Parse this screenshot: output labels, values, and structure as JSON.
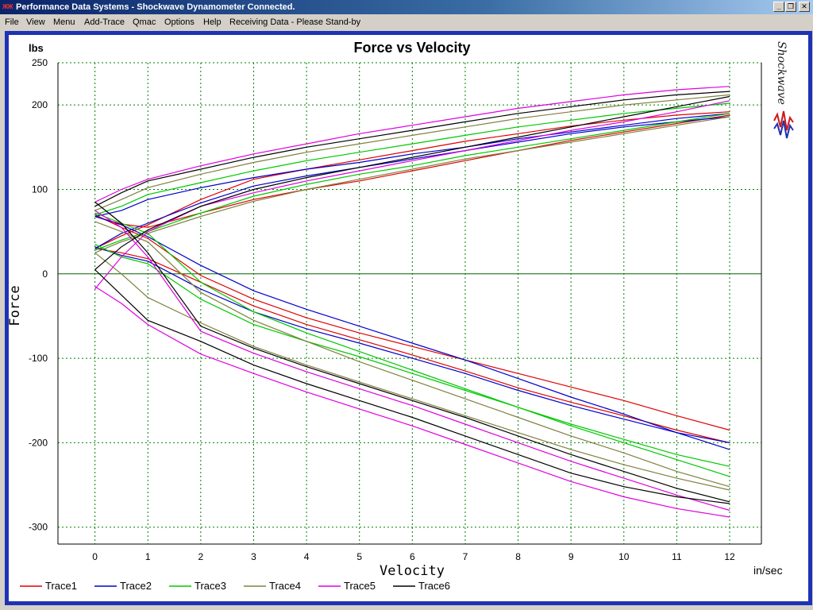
{
  "window": {
    "title": "Performance Data Systems - Shockwave Dynamometer Connected.",
    "icon": "pds-app-icon",
    "controls": [
      "minimize-icon",
      "restore-icon",
      "close-icon"
    ]
  },
  "menu": {
    "items": [
      "File",
      "View",
      "Menu",
      "Add-Trace",
      "Qmac",
      "Options",
      "Help"
    ],
    "status": "Receiving Data - Please Stand-by"
  },
  "logo": {
    "text": "Shockwave"
  },
  "colors": {
    "frame": "#1e32b4",
    "grid": "#008000",
    "zero_line": "#006400",
    "Trace1": "#e00000",
    "Trace2": "#0000cc",
    "Trace3": "#00c800",
    "Trace4": "#808040",
    "Trace5": "#e000e0",
    "Trace6": "#000000"
  },
  "chart_data": {
    "type": "line",
    "title": "Force vs Velocity",
    "xlabel": "Velocity",
    "ylabel": "Force",
    "x_unit": "in/sec",
    "y_unit": "lbs",
    "xlim": [
      -0.7,
      12.6
    ],
    "ylim": [
      -320,
      250
    ],
    "xticks": [
      0,
      1,
      2,
      3,
      4,
      5,
      6,
      7,
      8,
      9,
      10,
      11,
      12
    ],
    "yticks": [
      250,
      200,
      100,
      0,
      -100,
      -200,
      -300
    ],
    "grid": true,
    "legend_position": "bottom",
    "x": [
      0,
      0.5,
      1,
      2,
      3,
      4,
      5,
      6,
      7,
      8,
      9,
      10,
      11,
      12
    ],
    "series": [
      {
        "name": "Trace1",
        "color": "#e00000",
        "compression_a": [
          68,
          59,
          55,
          72,
          88,
          100,
          110,
          122,
          134,
          146,
          158,
          168,
          178,
          188
        ],
        "compression_b": [
          30,
          45,
          58,
          88,
          112,
          124,
          135,
          146,
          157,
          166,
          175,
          182,
          188,
          192
        ],
        "rebound_a": [
          30,
          25,
          18,
          -10,
          -38,
          -60,
          -78,
          -96,
          -115,
          -135,
          -152,
          -168,
          -185,
          -200
        ],
        "rebound_b": [
          70,
          55,
          42,
          -2,
          -30,
          -52,
          -70,
          -86,
          -102,
          -118,
          -134,
          -150,
          -168,
          -185
        ]
      },
      {
        "name": "Trace2",
        "color": "#0000cc",
        "compression_a": [
          68,
          75,
          88,
          102,
          114,
          124,
          132,
          142,
          150,
          160,
          168,
          176,
          184,
          190
        ],
        "compression_b": [
          30,
          48,
          60,
          84,
          104,
          116,
          126,
          136,
          146,
          156,
          166,
          174,
          180,
          186
        ],
        "rebound_a": [
          68,
          58,
          44,
          10,
          -20,
          -42,
          -62,
          -82,
          -102,
          -124,
          -146,
          -166,
          -188,
          -208
        ],
        "rebound_b": [
          32,
          22,
          15,
          -18,
          -45,
          -65,
          -82,
          -100,
          -118,
          -138,
          -156,
          -172,
          -188,
          -200
        ]
      },
      {
        "name": "Trace3",
        "color": "#00c800",
        "compression_a": [
          70,
          80,
          94,
          108,
          122,
          134,
          144,
          154,
          164,
          174,
          182,
          190,
          196,
          202
        ],
        "compression_b": [
          28,
          40,
          50,
          72,
          92,
          106,
          118,
          128,
          140,
          150,
          160,
          170,
          180,
          190
        ],
        "rebound_a": [
          35,
          20,
          12,
          -30,
          -60,
          -80,
          -98,
          -118,
          -138,
          -158,
          -178,
          -196,
          -214,
          -228
        ],
        "rebound_b": [
          72,
          60,
          48,
          -10,
          -45,
          -70,
          -92,
          -114,
          -136,
          -158,
          -180,
          -200,
          -220,
          -240
        ]
      },
      {
        "name": "Trace4",
        "color": "#808040",
        "compression_a": [
          75,
          88,
          102,
          118,
          132,
          144,
          154,
          164,
          174,
          184,
          192,
          200,
          206,
          212
        ],
        "compression_b": [
          25,
          38,
          48,
          68,
          86,
          100,
          112,
          124,
          136,
          146,
          156,
          166,
          176,
          186
        ],
        "rebound_a": [
          25,
          0,
          -28,
          -58,
          -86,
          -108,
          -128,
          -148,
          -168,
          -188,
          -208,
          -226,
          -242,
          -256
        ],
        "rebound_b": [
          62,
          50,
          38,
          -22,
          -55,
          -80,
          -104,
          -126,
          -148,
          -170,
          -192,
          -212,
          -234,
          -252
        ]
      },
      {
        "name": "Trace5",
        "color": "#e000e0",
        "compression_a": [
          85,
          100,
          112,
          128,
          142,
          154,
          166,
          176,
          186,
          196,
          204,
          212,
          218,
          222
        ],
        "compression_b": [
          -18,
          20,
          50,
          80,
          96,
          110,
          122,
          134,
          146,
          158,
          170,
          180,
          192,
          205
        ],
        "rebound_a": [
          -15,
          -35,
          -60,
          -95,
          -118,
          -140,
          -160,
          -180,
          -202,
          -224,
          -246,
          -264,
          -278,
          -288
        ],
        "rebound_b": [
          75,
          55,
          20,
          -68,
          -94,
          -116,
          -136,
          -156,
          -178,
          -200,
          -222,
          -242,
          -262,
          -280
        ]
      },
      {
        "name": "Trace6",
        "color": "#000000",
        "compression_a": [
          80,
          96,
          110,
          124,
          138,
          150,
          160,
          170,
          180,
          190,
          198,
          206,
          212,
          216
        ],
        "compression_b": [
          5,
          32,
          52,
          80,
          100,
          114,
          126,
          138,
          150,
          162,
          174,
          186,
          198,
          210
        ],
        "rebound_a": [
          5,
          -25,
          -55,
          -80,
          -108,
          -130,
          -150,
          -170,
          -192,
          -214,
          -236,
          -252,
          -264,
          -272
        ],
        "rebound_b": [
          85,
          60,
          25,
          -62,
          -88,
          -110,
          -130,
          -150,
          -170,
          -192,
          -214,
          -234,
          -254,
          -270
        ]
      }
    ]
  }
}
